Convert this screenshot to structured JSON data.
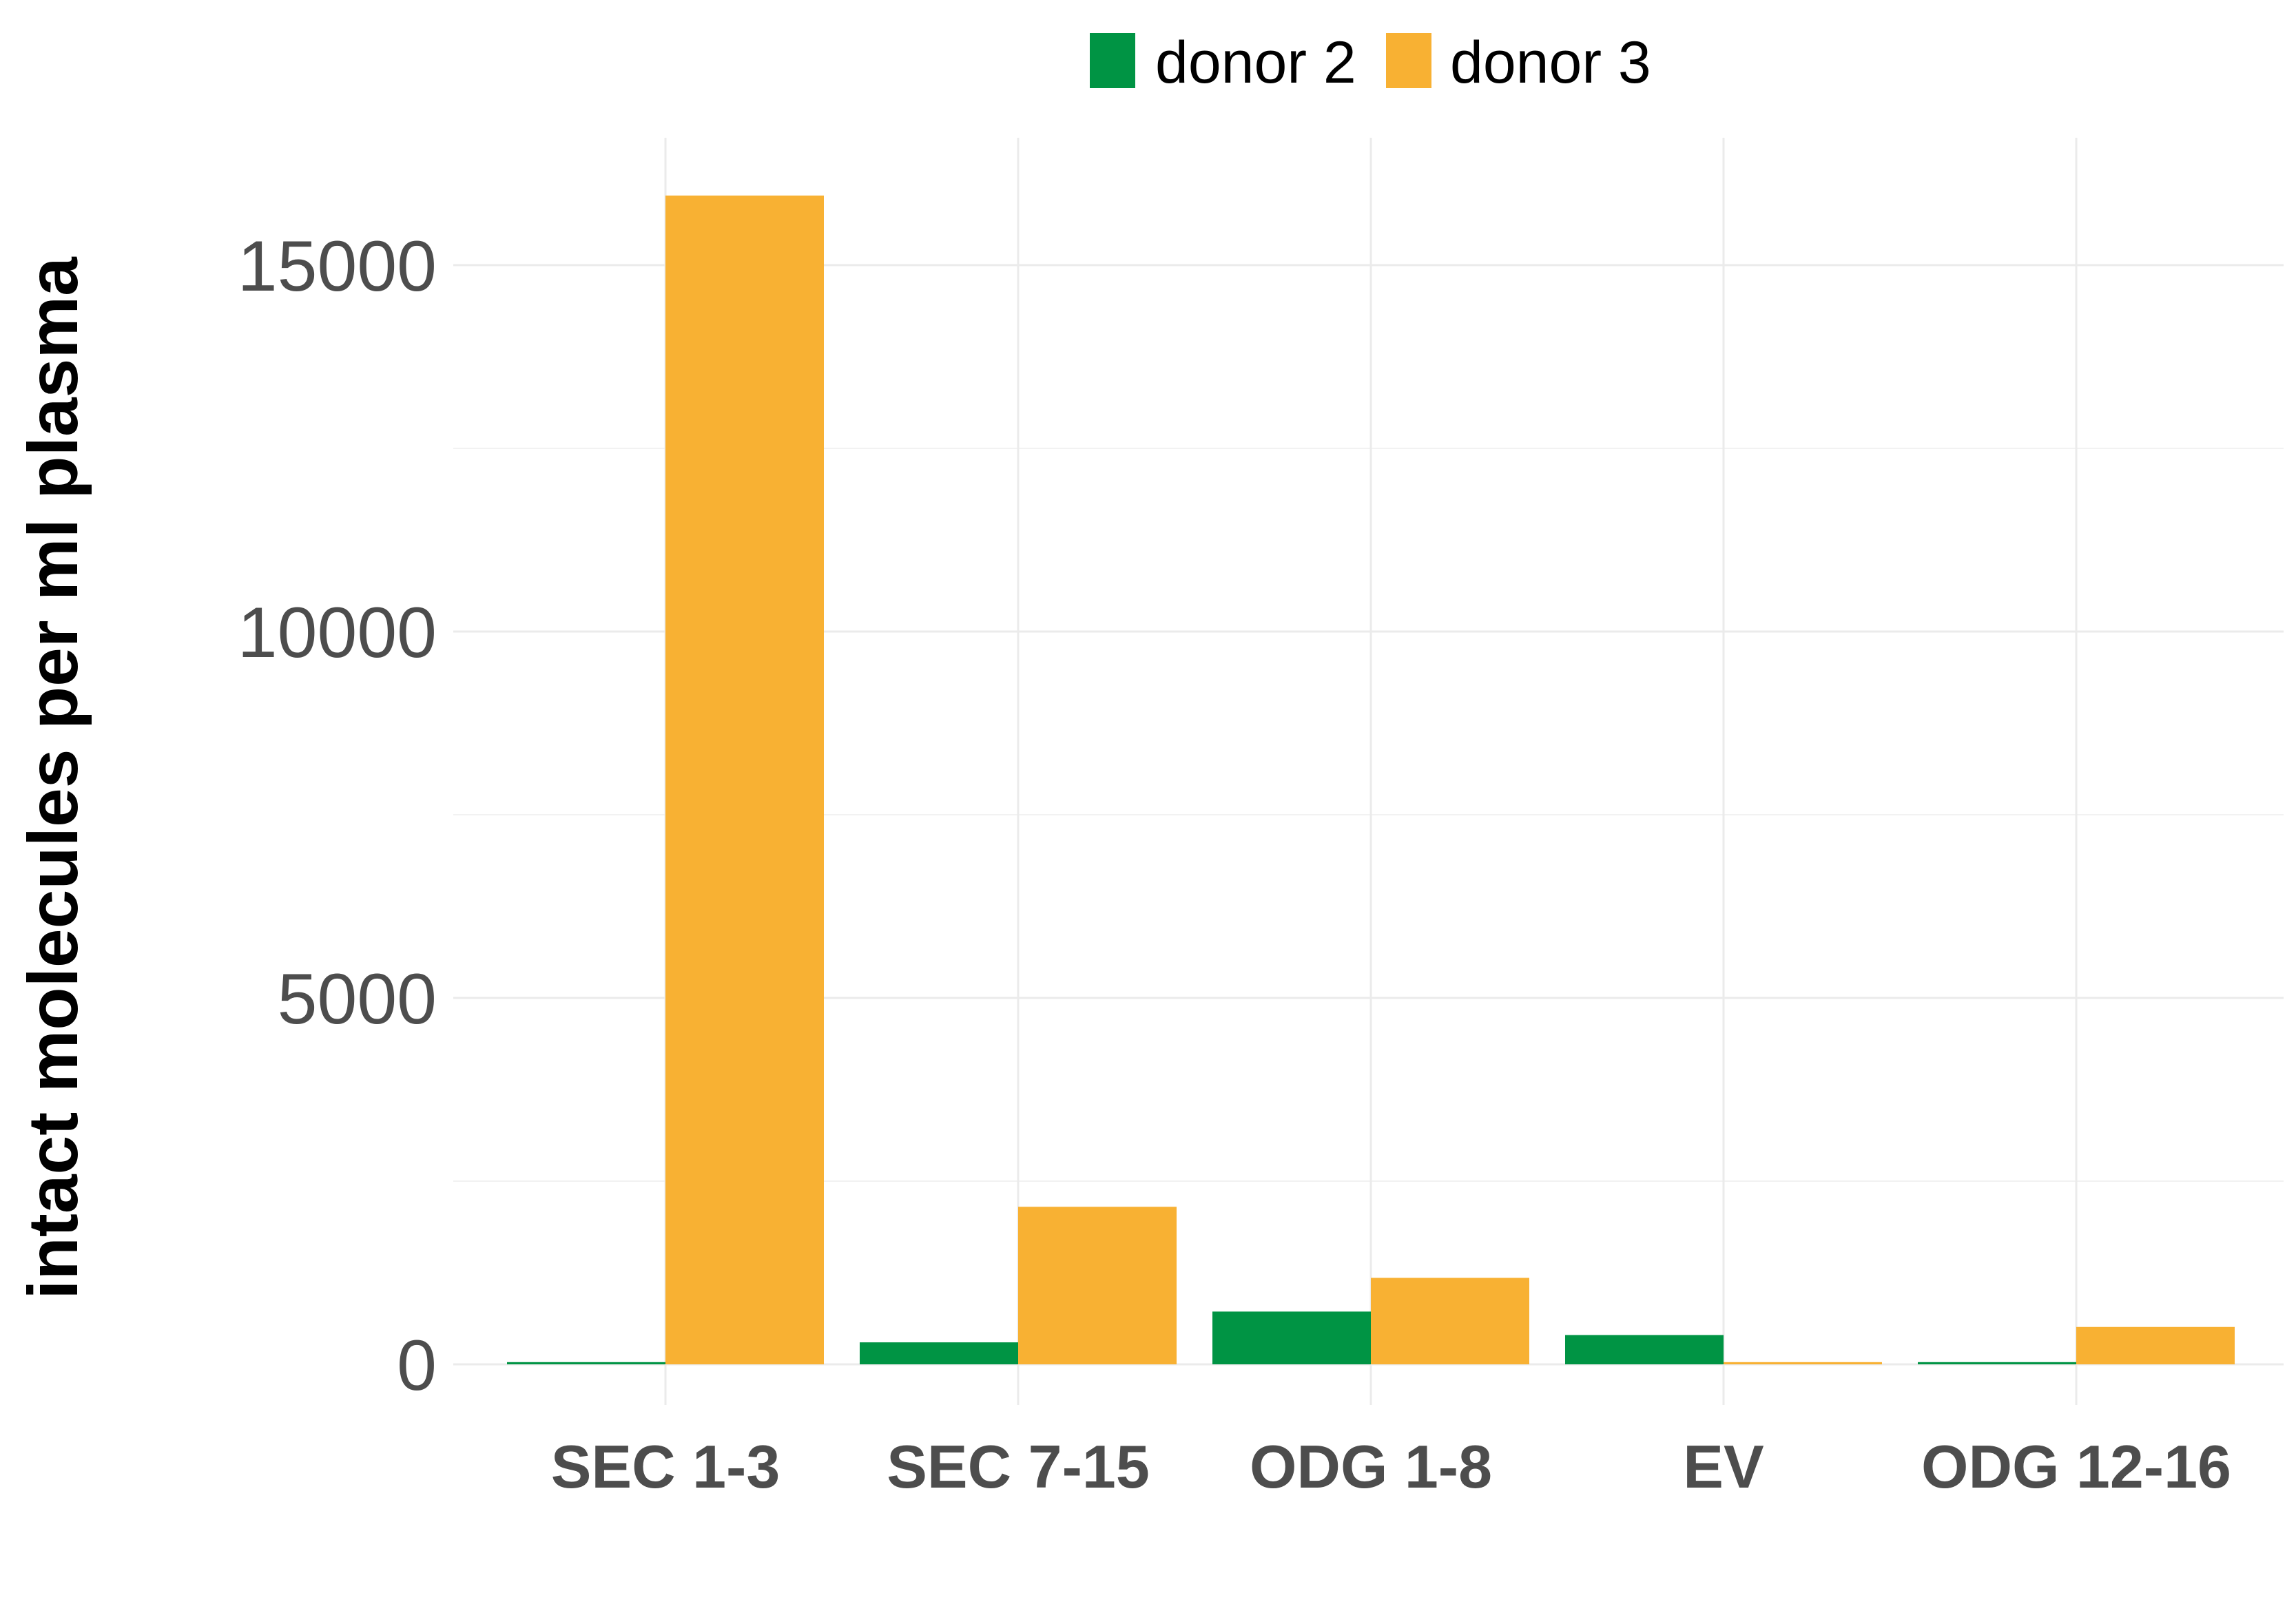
{
  "chart_data": {
    "type": "bar",
    "categories": [
      "SEC 1-3",
      "SEC 7-15",
      "ODG 1-8",
      "EV",
      "ODG 12-16"
    ],
    "series": [
      {
        "name": "donor 2",
        "color": "#009444",
        "values": [
          30,
          300,
          720,
          400,
          30
        ]
      },
      {
        "name": "donor 3",
        "color": "#f8b133",
        "values": [
          15950,
          2150,
          1180,
          30,
          510
        ]
      }
    ],
    "title": "",
    "xlabel": "",
    "ylabel": "intact molecules per ml plasma",
    "ylim": [
      0,
      16800
    ],
    "yticks": [
      0,
      5000,
      10000,
      15000
    ],
    "ytick_labels": [
      "0",
      "5000",
      "10000",
      "15000"
    ],
    "grid": true,
    "legend_position": "top"
  }
}
